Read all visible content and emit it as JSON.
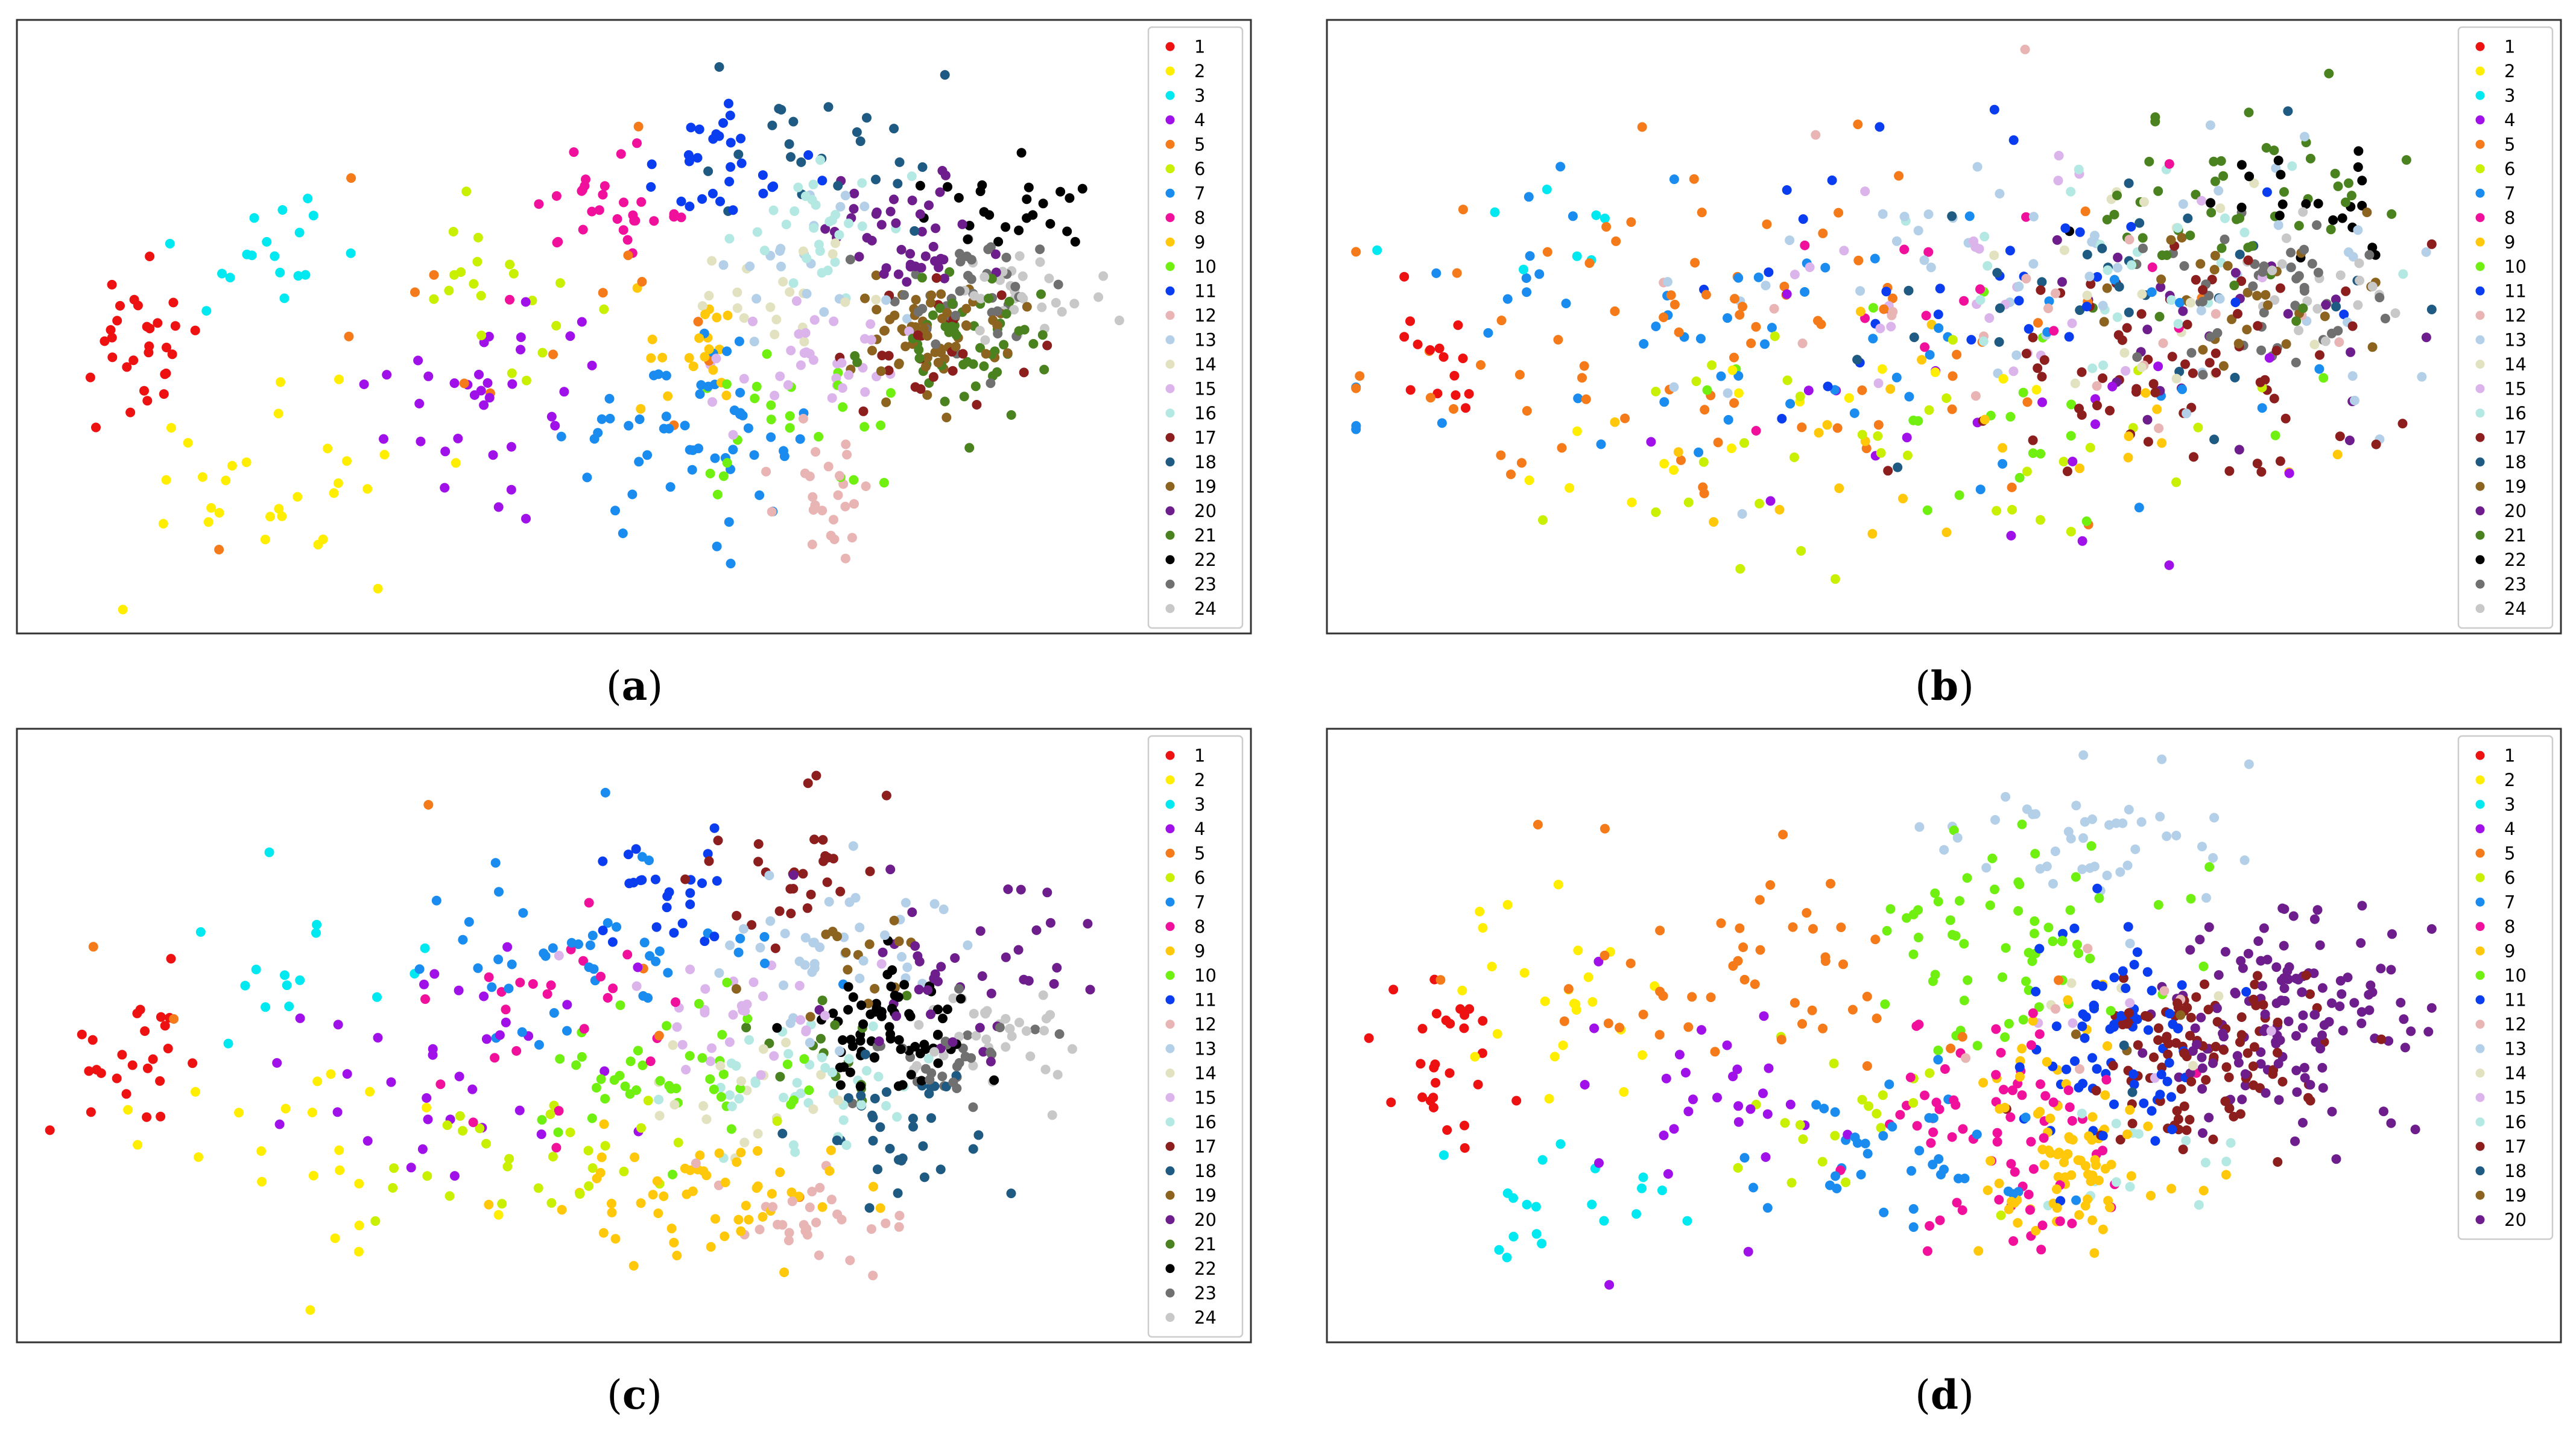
{
  "figure": {
    "panels": [
      {
        "label": "a"
      },
      {
        "label": "b"
      },
      {
        "label": "c"
      },
      {
        "label": "d"
      }
    ]
  },
  "colors": {
    "1": "#ee1111",
    "2": "#ffee00",
    "3": "#00e8f0",
    "4": "#a010e8",
    "5": "#f47a1a",
    "6": "#c8f000",
    "7": "#1a8cf0",
    "8": "#f0109c",
    "9": "#ffc80a",
    "10": "#70f010",
    "11": "#0a3cf0",
    "12": "#e8b4b4",
    "13": "#b4d0e8",
    "14": "#e2e2c0",
    "15": "#dcb4ec",
    "16": "#b4e8e2",
    "17": "#8c1e1e",
    "18": "#1e5a82",
    "19": "#8c6420",
    "20": "#6e1e8c",
    "21": "#4a8220",
    "22": "#000000",
    "23": "#707070",
    "24": "#c8c8c8"
  },
  "chart_data": [
    {
      "type": "scatter",
      "title": "",
      "xlabel": "",
      "ylabel": "",
      "xlim": [
        0,
        100
      ],
      "ylim": [
        0,
        100
      ],
      "grid": false,
      "legend": "top-right",
      "series": [
        {
          "name": "1",
          "center": [
            9,
            45
          ],
          "spread": [
            3,
            7
          ],
          "count": 30
        },
        {
          "name": "2",
          "center": [
            22,
            25
          ],
          "spread": [
            7,
            9
          ],
          "count": 30
        },
        {
          "name": "3",
          "center": [
            22,
            64
          ],
          "spread": [
            7,
            6
          ],
          "count": 18
        },
        {
          "name": "4",
          "center": [
            42,
            38
          ],
          "spread": [
            5,
            8
          ],
          "count": 35
        },
        {
          "name": "5",
          "center": [
            48,
            48
          ],
          "spread": [
            12,
            18
          ],
          "count": 15
        },
        {
          "name": "6",
          "center": [
            42,
            57
          ],
          "spread": [
            5,
            6
          ],
          "count": 20
        },
        {
          "name": "7",
          "center": [
            59,
            31
          ],
          "spread": [
            5,
            7
          ],
          "count": 55
        },
        {
          "name": "8",
          "center": [
            53,
            69
          ],
          "spread": [
            5,
            5
          ],
          "count": 30
        },
        {
          "name": "9",
          "center": [
            59,
            46
          ],
          "spread": [
            3,
            5
          ],
          "count": 20
        },
        {
          "name": "10",
          "center": [
            70,
            32
          ],
          "spread": [
            5,
            6
          ],
          "count": 25
        },
        {
          "name": "11",
          "center": [
            63,
            78
          ],
          "spread": [
            4,
            6
          ],
          "count": 30
        },
        {
          "name": "12",
          "center": [
            73,
            22
          ],
          "spread": [
            4,
            6
          ],
          "count": 25
        },
        {
          "name": "13",
          "center": [
            70,
            63
          ],
          "spread": [
            5,
            6
          ],
          "count": 20
        },
        {
          "name": "14",
          "center": [
            68,
            54
          ],
          "spread": [
            4,
            5
          ],
          "count": 20
        },
        {
          "name": "15",
          "center": [
            71,
            45
          ],
          "spread": [
            4,
            6
          ],
          "count": 35
        },
        {
          "name": "16",
          "center": [
            72,
            68
          ],
          "spread": [
            4,
            5
          ],
          "count": 30
        },
        {
          "name": "17",
          "center": [
            82,
            45
          ],
          "spread": [
            4,
            6
          ],
          "count": 25
        },
        {
          "name": "18",
          "center": [
            72,
            82
          ],
          "spread": [
            5,
            7
          ],
          "count": 25
        },
        {
          "name": "19",
          "center": [
            81,
            49
          ],
          "spread": [
            4,
            5
          ],
          "count": 60
        },
        {
          "name": "20",
          "center": [
            79,
            65
          ],
          "spread": [
            4,
            6
          ],
          "count": 45
        },
        {
          "name": "21",
          "center": [
            85,
            47
          ],
          "spread": [
            4,
            6
          ],
          "count": 55
        },
        {
          "name": "22",
          "center": [
            89,
            72
          ],
          "spread": [
            4,
            5
          ],
          "count": 25
        },
        {
          "name": "23",
          "center": [
            86,
            57
          ],
          "spread": [
            4,
            5
          ],
          "count": 40
        },
        {
          "name": "24",
          "center": [
            91,
            56
          ],
          "spread": [
            4,
            5
          ],
          "count": 30
        }
      ]
    },
    {
      "type": "scatter",
      "title": "",
      "xlabel": "",
      "ylabel": "",
      "xlim": [
        0,
        100
      ],
      "ylim": [
        0,
        100
      ],
      "grid": false,
      "legend": "top-right",
      "series": [
        {
          "name": "1",
          "center": [
            9,
            45
          ],
          "spread": [
            3,
            7
          ],
          "count": 15
        },
        {
          "name": "2",
          "center": [
            35,
            35
          ],
          "spread": [
            15,
            12
          ],
          "count": 15
        },
        {
          "name": "3",
          "center": [
            22,
            65
          ],
          "spread": [
            8,
            7
          ],
          "count": 8
        },
        {
          "name": "4",
          "center": [
            60,
            30
          ],
          "spread": [
            15,
            12
          ],
          "count": 20
        },
        {
          "name": "5",
          "center": [
            35,
            45
          ],
          "spread": [
            18,
            15
          ],
          "count": 80
        },
        {
          "name": "6",
          "center": [
            55,
            28
          ],
          "spread": [
            15,
            12
          ],
          "count": 35
        },
        {
          "name": "7",
          "center": [
            40,
            50
          ],
          "spread": [
            20,
            15
          ],
          "count": 60
        },
        {
          "name": "8",
          "center": [
            55,
            55
          ],
          "spread": [
            12,
            12
          ],
          "count": 15
        },
        {
          "name": "9",
          "center": [
            58,
            30
          ],
          "spread": [
            15,
            10
          ],
          "count": 25
        },
        {
          "name": "10",
          "center": [
            60,
            35
          ],
          "spread": [
            12,
            10
          ],
          "count": 20
        },
        {
          "name": "11",
          "center": [
            58,
            60
          ],
          "spread": [
            15,
            14
          ],
          "count": 30
        },
        {
          "name": "12",
          "center": [
            62,
            50
          ],
          "spread": [
            15,
            15
          ],
          "count": 20
        },
        {
          "name": "13",
          "center": [
            65,
            55
          ],
          "spread": [
            18,
            14
          ],
          "count": 55
        },
        {
          "name": "14",
          "center": [
            72,
            55
          ],
          "spread": [
            8,
            10
          ],
          "count": 20
        },
        {
          "name": "15",
          "center": [
            60,
            58
          ],
          "spread": [
            12,
            12
          ],
          "count": 25
        },
        {
          "name": "16",
          "center": [
            68,
            60
          ],
          "spread": [
            12,
            12
          ],
          "count": 25
        },
        {
          "name": "17",
          "center": [
            78,
            45
          ],
          "spread": [
            10,
            10
          ],
          "count": 70
        },
        {
          "name": "18",
          "center": [
            70,
            55
          ],
          "spread": [
            12,
            10
          ],
          "count": 30
        },
        {
          "name": "19",
          "center": [
            82,
            55
          ],
          "spread": [
            6,
            6
          ],
          "count": 30
        },
        {
          "name": "20",
          "center": [
            80,
            50
          ],
          "spread": [
            8,
            8
          ],
          "count": 25
        },
        {
          "name": "21",
          "center": [
            80,
            70
          ],
          "spread": [
            8,
            8
          ],
          "count": 50
        },
        {
          "name": "22",
          "center": [
            88,
            72
          ],
          "spread": [
            5,
            6
          ],
          "count": 22
        },
        {
          "name": "23",
          "center": [
            85,
            55
          ],
          "spread": [
            6,
            6
          ],
          "count": 45
        },
        {
          "name": "24",
          "center": [
            88,
            55
          ],
          "spread": [
            5,
            6
          ],
          "count": 20
        }
      ]
    },
    {
      "type": "scatter",
      "title": "",
      "xlabel": "",
      "ylabel": "",
      "xlim": [
        0,
        100
      ],
      "ylim": [
        0,
        100
      ],
      "grid": false,
      "legend": "top-right",
      "series": [
        {
          "name": "1",
          "center": [
            9,
            45
          ],
          "spread": [
            3,
            7
          ],
          "count": 25
        },
        {
          "name": "2",
          "center": [
            22,
            28
          ],
          "spread": [
            7,
            9
          ],
          "count": 22
        },
        {
          "name": "3",
          "center": [
            20,
            60
          ],
          "spread": [
            6,
            8
          ],
          "count": 15
        },
        {
          "name": "4",
          "center": [
            37,
            45
          ],
          "spread": [
            8,
            10
          ],
          "count": 35
        },
        {
          "name": "5",
          "center": [
            30,
            50
          ],
          "spread": [
            15,
            20
          ],
          "count": 6
        },
        {
          "name": "6",
          "center": [
            45,
            28
          ],
          "spread": [
            8,
            6
          ],
          "count": 30
        },
        {
          "name": "7",
          "center": [
            50,
            62
          ],
          "spread": [
            8,
            10
          ],
          "count": 45
        },
        {
          "name": "8",
          "center": [
            47,
            55
          ],
          "spread": [
            8,
            12
          ],
          "count": 25
        },
        {
          "name": "9",
          "center": [
            60,
            22
          ],
          "spread": [
            8,
            6
          ],
          "count": 55
        },
        {
          "name": "10",
          "center": [
            58,
            42
          ],
          "spread": [
            7,
            7
          ],
          "count": 45
        },
        {
          "name": "11",
          "center": [
            58,
            72
          ],
          "spread": [
            3,
            7
          ],
          "count": 25
        },
        {
          "name": "12",
          "center": [
            70,
            20
          ],
          "spread": [
            6,
            6
          ],
          "count": 30
        },
        {
          "name": "13",
          "center": [
            72,
            65
          ],
          "spread": [
            6,
            8
          ],
          "count": 40
        },
        {
          "name": "14",
          "center": [
            65,
            40
          ],
          "spread": [
            5,
            5
          ],
          "count": 20
        },
        {
          "name": "15",
          "center": [
            64,
            55
          ],
          "spread": [
            5,
            5
          ],
          "count": 30
        },
        {
          "name": "16",
          "center": [
            69,
            42
          ],
          "spread": [
            6,
            6
          ],
          "count": 40
        },
        {
          "name": "17",
          "center": [
            70,
            80
          ],
          "spread": [
            5,
            7
          ],
          "count": 30
        },
        {
          "name": "18",
          "center": [
            79,
            35
          ],
          "spread": [
            5,
            6
          ],
          "count": 35
        },
        {
          "name": "19",
          "center": [
            74,
            65
          ],
          "spread": [
            4,
            5
          ],
          "count": 15
        },
        {
          "name": "20",
          "center": [
            84,
            62
          ],
          "spread": [
            6,
            8
          ],
          "count": 45
        },
        {
          "name": "21",
          "center": [
            72,
            48
          ],
          "spread": [
            4,
            5
          ],
          "count": 15
        },
        {
          "name": "22",
          "center": [
            78,
            50
          ],
          "spread": [
            4,
            6
          ],
          "count": 70
        },
        {
          "name": "23",
          "center": [
            84,
            45
          ],
          "spread": [
            4,
            5
          ],
          "count": 30
        },
        {
          "name": "24",
          "center": [
            87,
            50
          ],
          "spread": [
            5,
            6
          ],
          "count": 35
        }
      ]
    },
    {
      "type": "scatter",
      "title": "",
      "xlabel": "",
      "ylabel": "",
      "xlim": [
        0,
        100
      ],
      "ylim": [
        0,
        100
      ],
      "grid": false,
      "legend": "top-right",
      "series": [
        {
          "name": "1",
          "center": [
            9,
            45
          ],
          "spread": [
            3,
            7
          ],
          "count": 28
        },
        {
          "name": "2",
          "center": [
            18,
            55
          ],
          "spread": [
            5,
            12
          ],
          "count": 25
        },
        {
          "name": "3",
          "center": [
            20,
            20
          ],
          "spread": [
            8,
            6
          ],
          "count": 20
        },
        {
          "name": "4",
          "center": [
            35,
            38
          ],
          "spread": [
            6,
            10
          ],
          "count": 30
        },
        {
          "name": "5",
          "center": [
            36,
            60
          ],
          "spread": [
            10,
            10
          ],
          "count": 50
        },
        {
          "name": "6",
          "center": [
            45,
            38
          ],
          "spread": [
            6,
            8
          ],
          "count": 20
        },
        {
          "name": "7",
          "center": [
            52,
            30
          ],
          "spread": [
            6,
            8
          ],
          "count": 40
        },
        {
          "name": "8",
          "center": [
            60,
            35
          ],
          "spread": [
            6,
            10
          ],
          "count": 75
        },
        {
          "name": "9",
          "center": [
            66,
            30
          ],
          "spread": [
            4,
            10
          ],
          "count": 85
        },
        {
          "name": "10",
          "center": [
            61,
            65
          ],
          "spread": [
            7,
            10
          ],
          "count": 65
        },
        {
          "name": "11",
          "center": [
            70,
            48
          ],
          "spread": [
            4,
            10
          ],
          "count": 75
        },
        {
          "name": "12",
          "center": [
            70,
            55
          ],
          "spread": [
            10,
            10
          ],
          "count": 6
        },
        {
          "name": "13",
          "center": [
            68,
            85
          ],
          "spread": [
            8,
            6
          ],
          "count": 45
        },
        {
          "name": "14",
          "center": [
            70,
            50
          ],
          "spread": [
            8,
            8
          ],
          "count": 5
        },
        {
          "name": "15",
          "center": [
            68,
            50
          ],
          "spread": [
            8,
            8
          ],
          "count": 5
        },
        {
          "name": "16",
          "center": [
            72,
            28
          ],
          "spread": [
            6,
            6
          ],
          "count": 15
        },
        {
          "name": "17",
          "center": [
            79,
            45
          ],
          "spread": [
            5,
            8
          ],
          "count": 110
        },
        {
          "name": "18",
          "center": [
            70,
            40
          ],
          "spread": [
            8,
            8
          ],
          "count": 3
        },
        {
          "name": "19",
          "center": [
            75,
            45
          ],
          "spread": [
            8,
            8
          ],
          "count": 3
        },
        {
          "name": "20",
          "center": [
            86,
            53
          ],
          "spread": [
            6,
            10
          ],
          "count": 140
        }
      ]
    }
  ]
}
